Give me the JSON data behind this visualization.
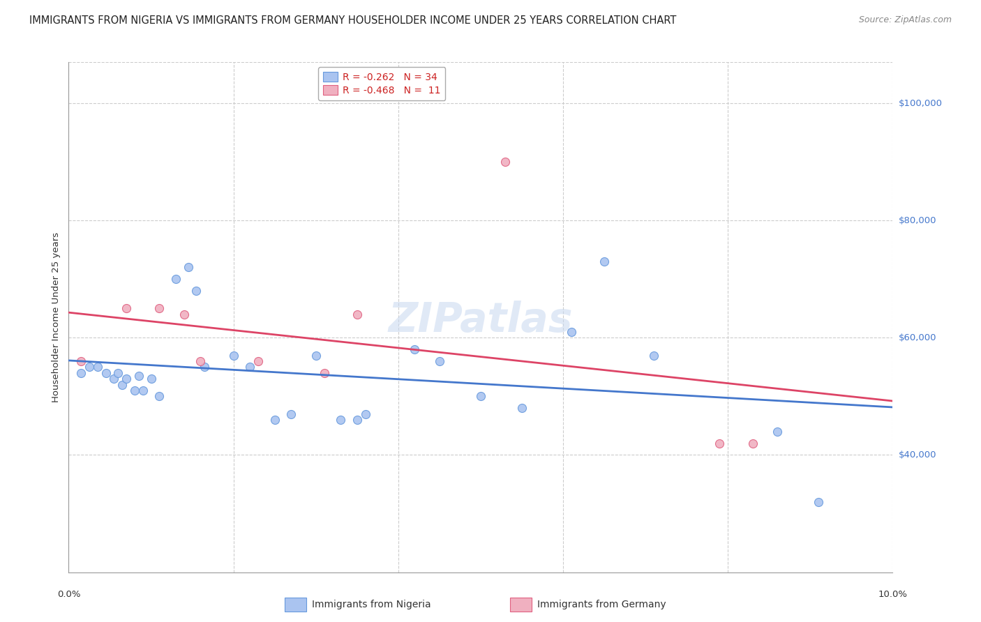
{
  "title": "IMMIGRANTS FROM NIGERIA VS IMMIGRANTS FROM GERMANY HOUSEHOLDER INCOME UNDER 25 YEARS CORRELATION CHART",
  "source": "Source: ZipAtlas.com",
  "ylabel": "Householder Income Under 25 years",
  "xlim": [
    0.0,
    10.0
  ],
  "ylim": [
    20000,
    107000
  ],
  "yticks": [
    40000,
    60000,
    80000,
    100000
  ],
  "ytick_labels": [
    "$40,000",
    "$60,000",
    "$80,000",
    "$100,000"
  ],
  "xtick_vals": [
    0.0,
    2.0,
    4.0,
    6.0,
    8.0,
    10.0
  ],
  "xtick_labels": [
    "0.0%",
    "",
    "",
    "",
    "",
    "10.0%"
  ],
  "legend_nigeria": "Immigrants from Nigeria",
  "legend_germany": "Immigrants from Germany",
  "nigeria_R": "R = -0.262",
  "nigeria_N": "N = 34",
  "germany_R": "R = -0.468",
  "germany_N": "N =  11",
  "nigeria_color": "#aac4f0",
  "germany_color": "#f0b0c0",
  "nigeria_edge_color": "#6699dd",
  "germany_edge_color": "#e06080",
  "nigeria_line_color": "#4477cc",
  "germany_line_color": "#dd4466",
  "right_tick_color": "#4477cc",
  "background_color": "#ffffff",
  "grid_color": "#cccccc",
  "nigeria_x": [
    0.15,
    0.25,
    0.35,
    0.45,
    0.55,
    0.6,
    0.65,
    0.7,
    0.8,
    0.85,
    0.9,
    1.0,
    1.1,
    1.3,
    1.45,
    1.55,
    1.65,
    2.0,
    2.2,
    2.5,
    2.7,
    3.0,
    3.3,
    3.5,
    3.6,
    4.2,
    4.5,
    5.0,
    5.5,
    6.1,
    6.5,
    7.1,
    8.6,
    9.1
  ],
  "nigeria_y": [
    54000,
    55000,
    55000,
    54000,
    53000,
    54000,
    52000,
    53000,
    51000,
    53500,
    51000,
    53000,
    50000,
    70000,
    72000,
    68000,
    55000,
    57000,
    55000,
    46000,
    47000,
    57000,
    46000,
    46000,
    47000,
    58000,
    56000,
    50000,
    48000,
    61000,
    73000,
    57000,
    44000,
    32000
  ],
  "germany_x": [
    0.15,
    0.7,
    1.1,
    1.4,
    1.6,
    2.3,
    3.1,
    3.5,
    5.3,
    7.9,
    8.3
  ],
  "germany_y": [
    56000,
    65000,
    65000,
    64000,
    56000,
    56000,
    54000,
    64000,
    90000,
    42000,
    42000
  ],
  "watermark_text": "ZIPatlas",
  "watermark_color": "#c8d8f0",
  "watermark_alpha": 0.55,
  "title_fontsize": 10.5,
  "source_fontsize": 9,
  "legend_fontsize": 10,
  "tick_fontsize": 9.5,
  "ylabel_fontsize": 9.5,
  "scatter_size": 75,
  "scatter_alpha": 0.9,
  "line_width": 2.0
}
